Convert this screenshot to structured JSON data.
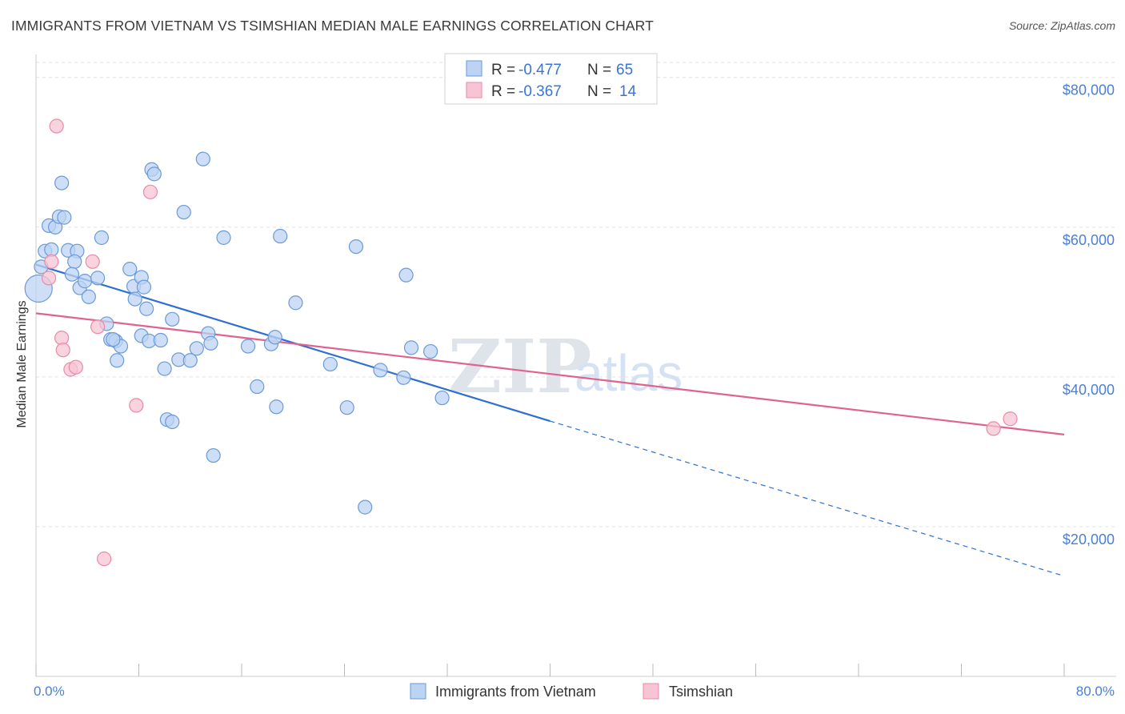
{
  "title": "IMMIGRANTS FROM VIETNAM VS TSIMSHIAN MEDIAN MALE EARNINGS CORRELATION CHART",
  "source": "Source: ZipAtlas.com",
  "colors": {
    "blue_fill": "#bcd3f3",
    "blue_stroke": "#6a9ad8",
    "blue_line": "#2e6fd0",
    "pink_fill": "#f7c4d3",
    "pink_stroke": "#e88aa8",
    "pink_line": "#e0628f",
    "axis_text": "#4a7fd4",
    "grid": "#e2e2e2"
  },
  "stats": {
    "blue": {
      "r_label": "R =",
      "r_value": "-0.477",
      "n_label": "N =",
      "n_value": "65"
    },
    "pink": {
      "r_label": "R =",
      "r_value": "-0.367",
      "n_label": "N =",
      "n_value": "14"
    }
  },
  "watermark": {
    "part1": "ZIP",
    "part2": "atlas"
  },
  "chart_data": {
    "type": "scatter",
    "title": "IMMIGRANTS FROM VIETNAM VS TSIMSHIAN MEDIAN MALE EARNINGS CORRELATION CHART",
    "xlabel": "",
    "ylabel": "Median Male Earnings",
    "xlim": [
      0,
      80
    ],
    "ylim": [
      0,
      82000
    ],
    "x_tick_labels": {
      "min": "0.0%",
      "max": "80.0%"
    },
    "y_ticks": [
      {
        "value": 20000,
        "label": "$20,000"
      },
      {
        "value": 40000,
        "label": "$40,000"
      },
      {
        "value": 60000,
        "label": "$60,000"
      },
      {
        "value": 80000,
        "label": "$80,000"
      }
    ],
    "grid": true,
    "legend_position": "bottom-center",
    "series": [
      {
        "name": "Immigrants from Vietnam",
        "color": "#6a9ad8",
        "points": [
          [
            0.2,
            51800
          ],
          [
            0.4,
            54700
          ],
          [
            0.7,
            56800
          ],
          [
            1.2,
            57000
          ],
          [
            1.0,
            60200
          ],
          [
            1.5,
            60000
          ],
          [
            1.8,
            61400
          ],
          [
            2.2,
            61300
          ],
          [
            2.0,
            65900
          ],
          [
            2.5,
            56900
          ],
          [
            3.2,
            56800
          ],
          [
            3.0,
            55400
          ],
          [
            2.8,
            53700
          ],
          [
            3.4,
            51900
          ],
          [
            3.8,
            52800
          ],
          [
            4.1,
            50700
          ],
          [
            4.8,
            53200
          ],
          [
            5.1,
            58600
          ],
          [
            5.5,
            47100
          ],
          [
            5.8,
            45000
          ],
          [
            6.2,
            44800
          ],
          [
            6.3,
            42200
          ],
          [
            6.6,
            44100
          ],
          [
            6.0,
            45000
          ],
          [
            7.3,
            54400
          ],
          [
            7.6,
            52100
          ],
          [
            7.7,
            50400
          ],
          [
            8.2,
            53300
          ],
          [
            8.6,
            49100
          ],
          [
            8.4,
            52000
          ],
          [
            8.2,
            45500
          ],
          [
            8.8,
            44800
          ],
          [
            9.0,
            67700
          ],
          [
            9.2,
            67100
          ],
          [
            9.7,
            44900
          ],
          [
            10.0,
            41100
          ],
          [
            10.6,
            47700
          ],
          [
            10.2,
            34300
          ],
          [
            10.6,
            34000
          ],
          [
            11.1,
            42300
          ],
          [
            11.5,
            62000
          ],
          [
            12.0,
            42200
          ],
          [
            12.5,
            43800
          ],
          [
            13.0,
            69100
          ],
          [
            13.4,
            45800
          ],
          [
            13.6,
            44500
          ],
          [
            13.8,
            29500
          ],
          [
            14.6,
            58600
          ],
          [
            16.5,
            44100
          ],
          [
            17.2,
            38700
          ],
          [
            18.3,
            44400
          ],
          [
            18.7,
            36000
          ],
          [
            19.0,
            58800
          ],
          [
            18.6,
            45300
          ],
          [
            20.2,
            49900
          ],
          [
            22.9,
            41700
          ],
          [
            24.2,
            35900
          ],
          [
            24.9,
            57400
          ],
          [
            25.6,
            22600
          ],
          [
            26.8,
            40900
          ],
          [
            28.8,
            53600
          ],
          [
            28.6,
            39900
          ],
          [
            29.2,
            43900
          ],
          [
            30.7,
            43400
          ],
          [
            31.6,
            37200
          ]
        ]
      },
      {
        "name": "Tsimshian",
        "color": "#e88aa8",
        "points": [
          [
            1.0,
            53200
          ],
          [
            1.2,
            55400
          ],
          [
            1.6,
            73500
          ],
          [
            2.0,
            45200
          ],
          [
            2.1,
            43600
          ],
          [
            2.7,
            41000
          ],
          [
            3.1,
            41300
          ],
          [
            4.4,
            55400
          ],
          [
            4.8,
            46700
          ],
          [
            5.3,
            15700
          ],
          [
            7.8,
            36200
          ],
          [
            8.9,
            64700
          ],
          [
            74.5,
            33100
          ],
          [
            75.8,
            34400
          ]
        ]
      }
    ],
    "trendlines": [
      {
        "series": "Immigrants from Vietnam",
        "x0": 0,
        "y0": 55000,
        "x1": 40,
        "y1": 34100,
        "dashed_to_x": 80,
        "dashed_to_y": 13400
      },
      {
        "series": "Tsimshian",
        "x0": 0,
        "y0": 48500,
        "x1": 80,
        "y1": 32300
      }
    ]
  }
}
